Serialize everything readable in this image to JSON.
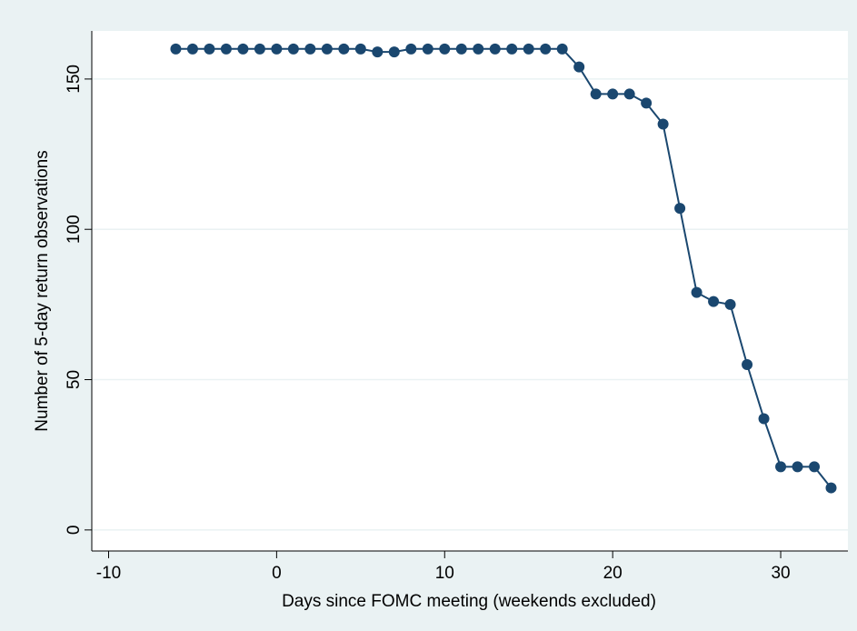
{
  "chart_data": {
    "type": "line",
    "xlabel": "Days since FOMC meeting (weekends excluded)",
    "ylabel": "Number of 5-day return observations",
    "xlim": [
      -11,
      34
    ],
    "ylim": [
      -7,
      166
    ],
    "xticks": [
      -10,
      0,
      10,
      20,
      30
    ],
    "yticks": [
      0,
      50,
      100,
      150
    ],
    "grid": "horizontal",
    "colors": {
      "background": "#eaf2f3",
      "plot_background": "#ffffff",
      "series": "#1a476f",
      "grid": "#eaf2f3"
    },
    "series": [
      {
        "x": [
          -6,
          -5,
          -4,
          -3,
          -2,
          -1,
          0,
          1,
          2,
          3,
          4,
          5,
          6,
          7,
          8,
          9,
          10,
          11,
          12,
          13,
          14,
          15,
          16,
          17,
          18,
          19,
          20,
          21,
          22,
          23,
          24,
          25,
          26,
          27,
          28,
          29,
          30,
          31,
          32,
          33
        ],
        "values": [
          160,
          160,
          160,
          160,
          160,
          160,
          160,
          160,
          160,
          160,
          160,
          160,
          159,
          159,
          160,
          160,
          160,
          160,
          160,
          160,
          160,
          160,
          160,
          160,
          154,
          145,
          145,
          145,
          142,
          135,
          107,
          79,
          76,
          75,
          55,
          37,
          21,
          21,
          21,
          14
        ]
      }
    ]
  }
}
